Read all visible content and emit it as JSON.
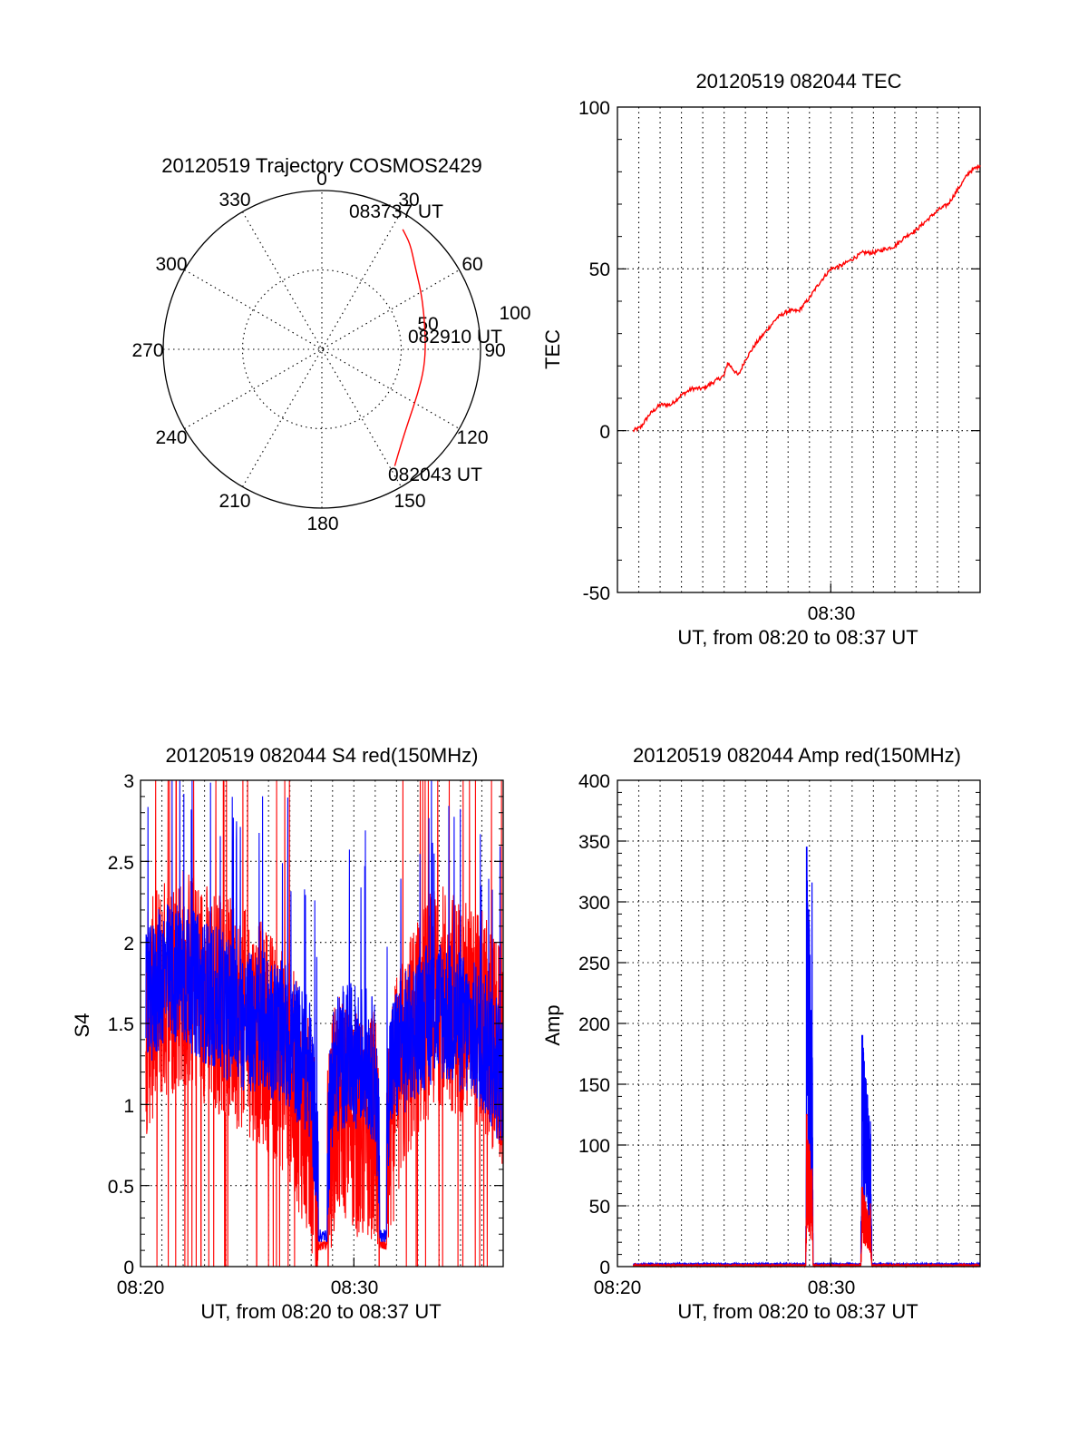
{
  "colors": {
    "red": "#ff0000",
    "blue": "#0000ff",
    "axis": "#000000"
  },
  "chart_data": [
    {
      "type": "polar",
      "title": "20120519 Trajectory COSMOS2429",
      "azimuth_labels": [
        "0",
        "30",
        "60",
        "90",
        "120",
        "150",
        "180",
        "210",
        "240",
        "270",
        "300",
        "330"
      ],
      "radial_labels": [
        "50",
        "100"
      ],
      "series": [
        {
          "color": "red",
          "points": [
            {
              "az": 148,
              "el": 12
            },
            {
              "az": 140,
              "el": 20
            },
            {
              "az": 130,
              "el": 26
            },
            {
              "az": 115,
              "el": 30
            },
            {
              "az": 100,
              "el": 31
            },
            {
              "az": 86,
              "el": 31
            },
            {
              "az": 72,
              "el": 29
            },
            {
              "az": 60,
              "el": 25
            },
            {
              "az": 48,
              "el": 19
            },
            {
              "az": 40,
              "el": 12
            },
            {
              "az": 34,
              "el": 8
            }
          ]
        }
      ],
      "annotations": [
        {
          "text": "083737 UT",
          "at": "end"
        },
        {
          "text": "082910 UT",
          "at": "max"
        },
        {
          "text": "082043 UT",
          "at": "start"
        }
      ]
    },
    {
      "type": "line",
      "title": "20120519 082044 TEC",
      "xlabel": "UT, from 08:20 to 08:37 UT",
      "ylabel": "TEC",
      "x_tick_labels": [
        "08:30"
      ],
      "y_tick_labels": [
        "100",
        "50",
        "0",
        "-50"
      ],
      "xlim": [
        "08:20:00",
        "08:37:00"
      ],
      "ylim": [
        -50,
        100
      ],
      "series": [
        {
          "color": "red",
          "points": [
            [
              "08:20:44",
              0
            ],
            [
              "08:21:05",
              1
            ],
            [
              "08:21:30",
              5
            ],
            [
              "08:22:00",
              8
            ],
            [
              "08:22:30",
              8
            ],
            [
              "08:23:00",
              11
            ],
            [
              "08:23:30",
              13
            ],
            [
              "08:24:00",
              13
            ],
            [
              "08:24:30",
              15
            ],
            [
              "08:25:00",
              17
            ],
            [
              "08:25:10",
              21
            ],
            [
              "08:25:40",
              17
            ],
            [
              "08:26:00",
              22
            ],
            [
              "08:26:30",
              27
            ],
            [
              "08:27:00",
              31
            ],
            [
              "08:27:30",
              35
            ],
            [
              "08:28:00",
              37
            ],
            [
              "08:28:30",
              37
            ],
            [
              "08:29:00",
              41
            ],
            [
              "08:29:30",
              46
            ],
            [
              "08:30:00",
              50
            ],
            [
              "08:30:30",
              51
            ],
            [
              "08:31:00",
              53
            ],
            [
              "08:31:30",
              55
            ],
            [
              "08:32:00",
              55
            ],
            [
              "08:32:30",
              56
            ],
            [
              "08:33:00",
              57
            ],
            [
              "08:33:30",
              60
            ],
            [
              "08:34:00",
              62
            ],
            [
              "08:34:30",
              65
            ],
            [
              "08:35:00",
              68
            ],
            [
              "08:35:30",
              70
            ],
            [
              "08:36:00",
              75
            ],
            [
              "08:36:30",
              80
            ],
            [
              "08:37:00",
              82
            ]
          ]
        }
      ]
    },
    {
      "type": "line",
      "title": "20120519 082044 S4 red(150MHz)",
      "xlabel": "UT, from 08:20 to 08:37 UT",
      "ylabel": "S4",
      "x_tick_labels": [
        "08:20",
        "08:30"
      ],
      "y_tick_labels": [
        "3",
        "2.5",
        "2",
        "1.5",
        "1",
        "0.5",
        "0"
      ],
      "xlim": [
        "08:20:00",
        "08:37:00"
      ],
      "ylim": [
        0,
        3
      ],
      "series": [
        {
          "color": "red",
          "description": "highly variable, spikes across the full 0-3 range, dips near 0.1 around 08:28:30 and 08:31:20",
          "envelope": [
            [
              "08:20:15",
              1.5
            ],
            [
              "08:21:00",
              1.7
            ],
            [
              "08:22:00",
              1.8
            ],
            [
              "08:23:00",
              1.7
            ],
            [
              "08:24:00",
              1.6
            ],
            [
              "08:25:00",
              1.5
            ],
            [
              "08:26:00",
              1.4
            ],
            [
              "08:27:00",
              1.2
            ],
            [
              "08:27:30",
              1.0
            ],
            [
              "08:28:00",
              0.8
            ],
            [
              "08:28:30",
              0.1
            ],
            [
              "08:29:00",
              0.9
            ],
            [
              "08:29:30",
              1.0
            ],
            [
              "08:30:00",
              0.9
            ],
            [
              "08:30:30",
              0.8
            ],
            [
              "08:31:00",
              0.9
            ],
            [
              "08:31:20",
              0.1
            ],
            [
              "08:31:40",
              0.8
            ],
            [
              "08:32:00",
              1.1
            ],
            [
              "08:33:00",
              1.5
            ],
            [
              "08:34:00",
              1.7
            ],
            [
              "08:35:00",
              1.6
            ],
            [
              "08:36:00",
              1.5
            ],
            [
              "08:36:50",
              1.3
            ]
          ]
        },
        {
          "color": "blue",
          "description": "noisy, mostly between 1.0 and 2.5",
          "envelope": [
            [
              "08:20:15",
              1.6
            ],
            [
              "08:21:00",
              1.8
            ],
            [
              "08:22:00",
              1.8
            ],
            [
              "08:23:00",
              1.7
            ],
            [
              "08:24:00",
              1.6
            ],
            [
              "08:25:00",
              1.5
            ],
            [
              "08:26:00",
              1.5
            ],
            [
              "08:27:00",
              1.4
            ],
            [
              "08:27:30",
              1.3
            ],
            [
              "08:28:00",
              1.2
            ],
            [
              "08:28:30",
              0.15
            ],
            [
              "08:29:00",
              1.2
            ],
            [
              "08:29:30",
              1.3
            ],
            [
              "08:30:00",
              1.3
            ],
            [
              "08:30:30",
              1.3
            ],
            [
              "08:31:00",
              1.2
            ],
            [
              "08:31:20",
              0.2
            ],
            [
              "08:31:40",
              1.2
            ],
            [
              "08:32:00",
              1.3
            ],
            [
              "08:33:00",
              1.5
            ],
            [
              "08:34:00",
              1.6
            ],
            [
              "08:35:00",
              1.5
            ],
            [
              "08:36:00",
              1.4
            ],
            [
              "08:36:50",
              1.2
            ]
          ]
        }
      ]
    },
    {
      "type": "line",
      "title": "20120519 082044 Amp red(150MHz)",
      "xlabel": "UT, from 08:20 to 08:37 UT",
      "ylabel": "Amp",
      "x_tick_labels": [
        "08:20",
        "08:30"
      ],
      "y_tick_labels": [
        "400",
        "350",
        "300",
        "250",
        "200",
        "150",
        "100",
        "50",
        "0"
      ],
      "xlim": [
        "08:20:00",
        "08:37:00"
      ],
      "ylim": [
        0,
        400
      ],
      "series": [
        {
          "color": "blue",
          "bursts": [
            {
              "from": "08:28:50",
              "to": "08:29:10",
              "peak": 345
            },
            {
              "from": "08:31:25",
              "to": "08:31:55",
              "peak": 190
            }
          ],
          "baseline": 2
        },
        {
          "color": "red",
          "bursts": [
            {
              "from": "08:28:50",
              "to": "08:29:10",
              "peak": 125
            },
            {
              "from": "08:31:25",
              "to": "08:31:55",
              "peak": 65
            }
          ],
          "baseline": 1
        }
      ]
    }
  ]
}
